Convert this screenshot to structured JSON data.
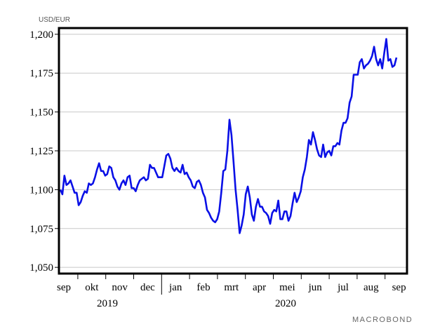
{
  "chart_data": {
    "type": "line",
    "y_unit_label": "USD/EUR",
    "source": "MACROBOND",
    "months": [
      "sep",
      "okt",
      "nov",
      "dec",
      "jan",
      "feb",
      "mrt",
      "apr",
      "mei",
      "jun",
      "jul",
      "aug",
      "sep"
    ],
    "years": [
      "2019",
      "2020"
    ],
    "ylim": [
      1.046,
      1.204
    ],
    "yticks": [
      {
        "value": 1.05,
        "label": "1,050"
      },
      {
        "value": 1.075,
        "label": "1,075"
      },
      {
        "value": 1.1,
        "label": "1,100"
      },
      {
        "value": 1.125,
        "label": "1,125"
      },
      {
        "value": 1.15,
        "label": "1,150"
      },
      {
        "value": 1.175,
        "label": "1,175"
      },
      {
        "value": 1.2,
        "label": "1,200"
      }
    ],
    "grid": true,
    "color": "#0a10e6",
    "values": [
      1.1,
      1.097,
      1.109,
      1.103,
      1.104,
      1.106,
      1.102,
      1.098,
      1.098,
      1.09,
      1.092,
      1.096,
      1.099,
      1.098,
      1.104,
      1.103,
      1.104,
      1.108,
      1.113,
      1.117,
      1.112,
      1.112,
      1.109,
      1.11,
      1.115,
      1.114,
      1.108,
      1.106,
      1.102,
      1.1,
      1.104,
      1.106,
      1.103,
      1.108,
      1.109,
      1.101,
      1.101,
      1.099,
      1.103,
      1.106,
      1.107,
      1.108,
      1.106,
      1.107,
      1.116,
      1.114,
      1.114,
      1.111,
      1.108,
      1.108,
      1.108,
      1.115,
      1.122,
      1.123,
      1.12,
      1.114,
      1.112,
      1.114,
      1.112,
      1.111,
      1.116,
      1.11,
      1.111,
      1.108,
      1.106,
      1.102,
      1.101,
      1.105,
      1.106,
      1.103,
      1.098,
      1.095,
      1.087,
      1.085,
      1.082,
      1.08,
      1.079,
      1.081,
      1.086,
      1.098,
      1.112,
      1.113,
      1.125,
      1.145,
      1.135,
      1.118,
      1.1,
      1.087,
      1.072,
      1.077,
      1.084,
      1.097,
      1.102,
      1.095,
      1.084,
      1.08,
      1.089,
      1.094,
      1.089,
      1.089,
      1.086,
      1.085,
      1.083,
      1.078,
      1.085,
      1.087,
      1.086,
      1.093,
      1.081,
      1.081,
      1.086,
      1.086,
      1.08,
      1.083,
      1.091,
      1.098,
      1.092,
      1.095,
      1.099,
      1.108,
      1.113,
      1.121,
      1.132,
      1.129,
      1.137,
      1.132,
      1.126,
      1.122,
      1.121,
      1.129,
      1.121,
      1.124,
      1.125,
      1.122,
      1.128,
      1.128,
      1.13,
      1.129,
      1.138,
      1.143,
      1.143,
      1.146,
      1.156,
      1.16,
      1.174,
      1.174,
      1.174,
      1.182,
      1.184,
      1.178,
      1.18,
      1.181,
      1.183,
      1.186,
      1.192,
      1.184,
      1.18,
      1.184,
      1.178,
      1.188,
      1.197,
      1.183,
      1.184,
      1.179,
      1.18,
      1.185
    ]
  }
}
